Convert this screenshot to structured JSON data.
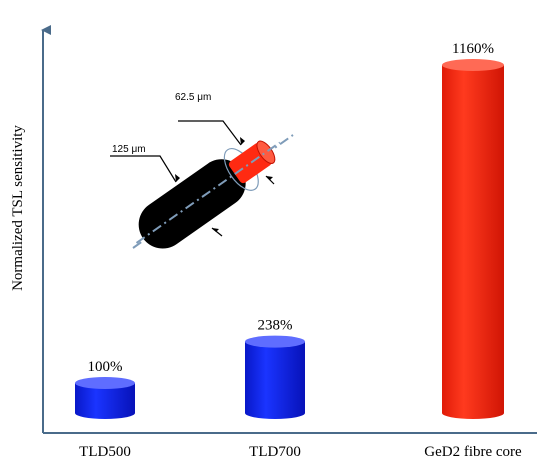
{
  "chart_data": {
    "type": "bar",
    "categories": [
      "TLD500",
      "TLD700",
      "GeD2 fibre core"
    ],
    "values": [
      100,
      238,
      1160
    ],
    "data_labels": [
      "100%",
      "238%",
      "1160%"
    ],
    "ylabel": "Normalized TSL sensitivity",
    "ylim": [
      0,
      1250
    ],
    "grid": false,
    "bar_style": "cylinder",
    "colors": [
      "#0a1ff0",
      "#0a1ff0",
      "#ff2a12"
    ],
    "inset": {
      "labels": {
        "outer": "125 μm",
        "inner": "62.5 μm"
      },
      "colors": {
        "cladding": "#000000",
        "core": "#ff2a12",
        "axis": "#7f9cb9"
      }
    }
  }
}
